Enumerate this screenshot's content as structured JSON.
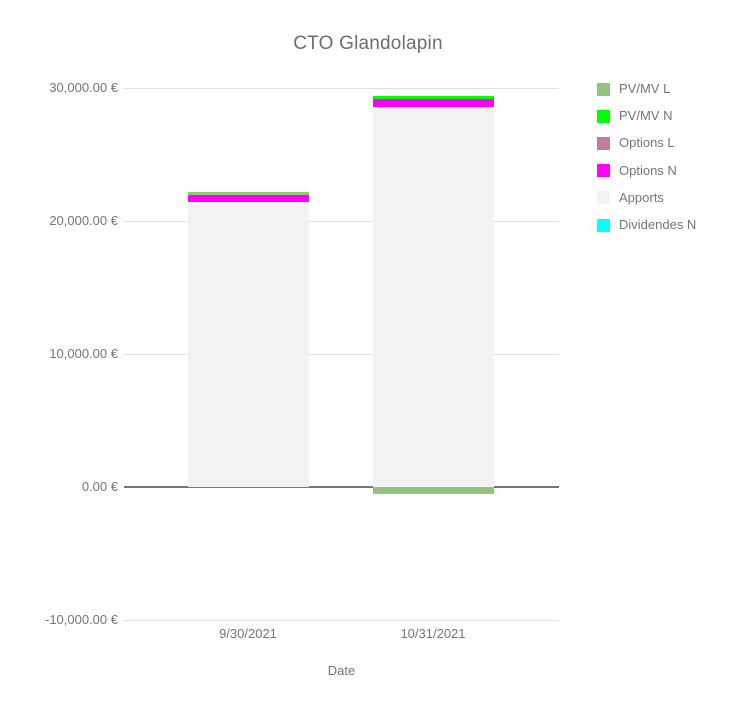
{
  "chart_data": {
    "type": "bar",
    "stacked": true,
    "title": "CTO Glandolapin",
    "xlabel": "Date",
    "ylabel": "",
    "categories": [
      "9/30/2021",
      "10/31/2021"
    ],
    "series": [
      {
        "name": "PV/MV L",
        "color": "#93c47d",
        "values": [
          230,
          -530
        ]
      },
      {
        "name": "PV/MV N",
        "color": "#00ff00",
        "values": [
          0,
          260
        ]
      },
      {
        "name": "Options L",
        "color": "#c27ba0",
        "values": [
          0,
          0
        ]
      },
      {
        "name": "Options N",
        "color": "#ff00ff",
        "values": [
          530,
          560
        ]
      },
      {
        "name": "Apports",
        "color": "#f2f2f2",
        "values": [
          21400,
          28600
        ]
      },
      {
        "name": "Dividendes N",
        "color": "#00ffff",
        "values": [
          0,
          0
        ]
      }
    ],
    "stack_order_bottom_to_top": [
      "Dividendes N",
      "Apports",
      "Options N",
      "Options L",
      "PV/MV N",
      "PV/MV L"
    ],
    "y_ticks": [
      {
        "value": 30000,
        "label": "30,000.00 €"
      },
      {
        "value": 20000,
        "label": "20,000.00 €"
      },
      {
        "value": 10000,
        "label": "10,000.00 €"
      },
      {
        "value": 0,
        "label": "0.00 €"
      },
      {
        "value": -10000,
        "label": "-10,000.00 €"
      }
    ],
    "ylim": [
      -10000,
      30000
    ],
    "grid": true,
    "legend_position": "right",
    "colors": {
      "grid_line": "#e0e0e0",
      "zero_baseline": "#757575",
      "axis_text": "#757575",
      "title_text": "#6d6d6d",
      "background": "#ffffff"
    }
  }
}
